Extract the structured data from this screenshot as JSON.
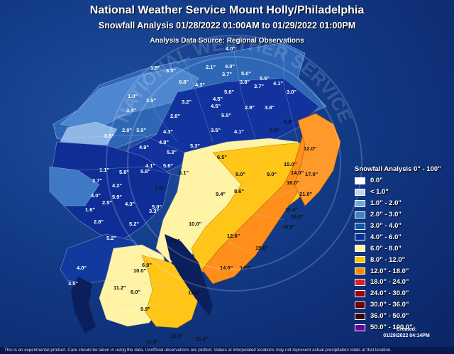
{
  "header": {
    "title": "National Weather Service Mount Holly/Philadelphia",
    "subtitle": "Snowfall Analysis 01/28/2022 01:00AM to 01/29/2022 01:00PM",
    "source": "Analysis Data Source: Regional Observations"
  },
  "legend": {
    "title": "Snowfall Analysis 0\" - 100\"",
    "items": [
      {
        "label": "0.0\"",
        "color": "#ffffff"
      },
      {
        "label": "< 1.0\"",
        "color": "#bdd7ee"
      },
      {
        "label": "1.0\" - 2.0\"",
        "color": "#6fa8dc"
      },
      {
        "label": "2.0\" - 3.0\"",
        "color": "#3d85c6"
      },
      {
        "label": "3.0\" - 4.0\"",
        "color": "#1155aa"
      },
      {
        "label": "4.0\" - 6.0\"",
        "color": "#0b2f99"
      },
      {
        "label": "6.0\" - 8.0\"",
        "color": "#fff2a0"
      },
      {
        "label": "8.0\" - 12.0\"",
        "color": "#ffc000"
      },
      {
        "label": "12.0\" - 18.0\"",
        "color": "#ff8c00"
      },
      {
        "label": "18.0\" - 24.0\"",
        "color": "#e02020"
      },
      {
        "label": "24.0\" - 30.0\"",
        "color": "#a00000"
      },
      {
        "label": "30.0\" - 36.0\"",
        "color": "#700000"
      },
      {
        "label": "36.0\" - 50.0\"",
        "color": "#3a0010"
      },
      {
        "label": "50.0\" - 100.0\"",
        "color": "#6a00a0"
      }
    ]
  },
  "created": {
    "label": "Created:",
    "time": "01/29/2022 04:14PM"
  },
  "disclaimer": "This is an experimental product. Care should be taken in using the data. Unofficial observations are plotted. Values at interpolated locations may not represent actual precipitation totals at that location.",
  "watermark": "NATIONAL WEATHER SERVICE",
  "observations": [
    "4.0\"",
    "1.5\"",
    "3.5\"",
    "2.1\"",
    "4.0\"",
    "3.7\"",
    "5.0\"",
    "5.5\"",
    "0.8\"",
    "3.8\"",
    "3.7\"",
    "4.1\"",
    "3.0\"",
    "4.3\"",
    "5.6\"",
    "4.5\"",
    "1.0\"",
    "3.5\"",
    "3.2\"",
    "4.5\"",
    "2.9\"",
    "3.8\"",
    "3.4\"",
    "2.8\"",
    "5.5\"",
    "6.0\"",
    "0.5\"",
    "2.0\"",
    "3.5\"",
    "4.3\"",
    "3.5\"",
    "4.1\"",
    "7.5\"",
    "4.8\"",
    "5.3\"",
    "4.9\"",
    "5.3\"",
    "6.5\"",
    "12.0\"",
    "4.1\"",
    "5.6\"",
    "9.0\"",
    "15.0\"",
    "1.1\"",
    "5.8\"",
    "5.8\"",
    "6.1\"",
    "9.0\"",
    "14.0\"",
    "17.0\"",
    "3.7\"",
    "4.2\"",
    "7.0\"",
    "8.6\"",
    "16.0\"",
    "4.0\"",
    "5.9\"",
    "9.4\"",
    "21.0\"",
    "2.5\"",
    "4.3\"",
    "5.0\"",
    "16.0\"",
    "1.6\"",
    "3.3\"",
    "11.4\"",
    "2.8\"",
    "5.2\"",
    "10.0\"",
    "16.0\"",
    "5.2\"",
    "7.0\"",
    "12.6\"",
    "15.0\"",
    "14.0\"",
    "14.8\"",
    "4.0\"",
    "6.0\"",
    "10.0\"",
    "3.5\"",
    "11.2\"",
    "8.0\"",
    "13.0\"",
    "9.9\"",
    "12.5\"",
    "11.6\"",
    "11.4\""
  ]
}
